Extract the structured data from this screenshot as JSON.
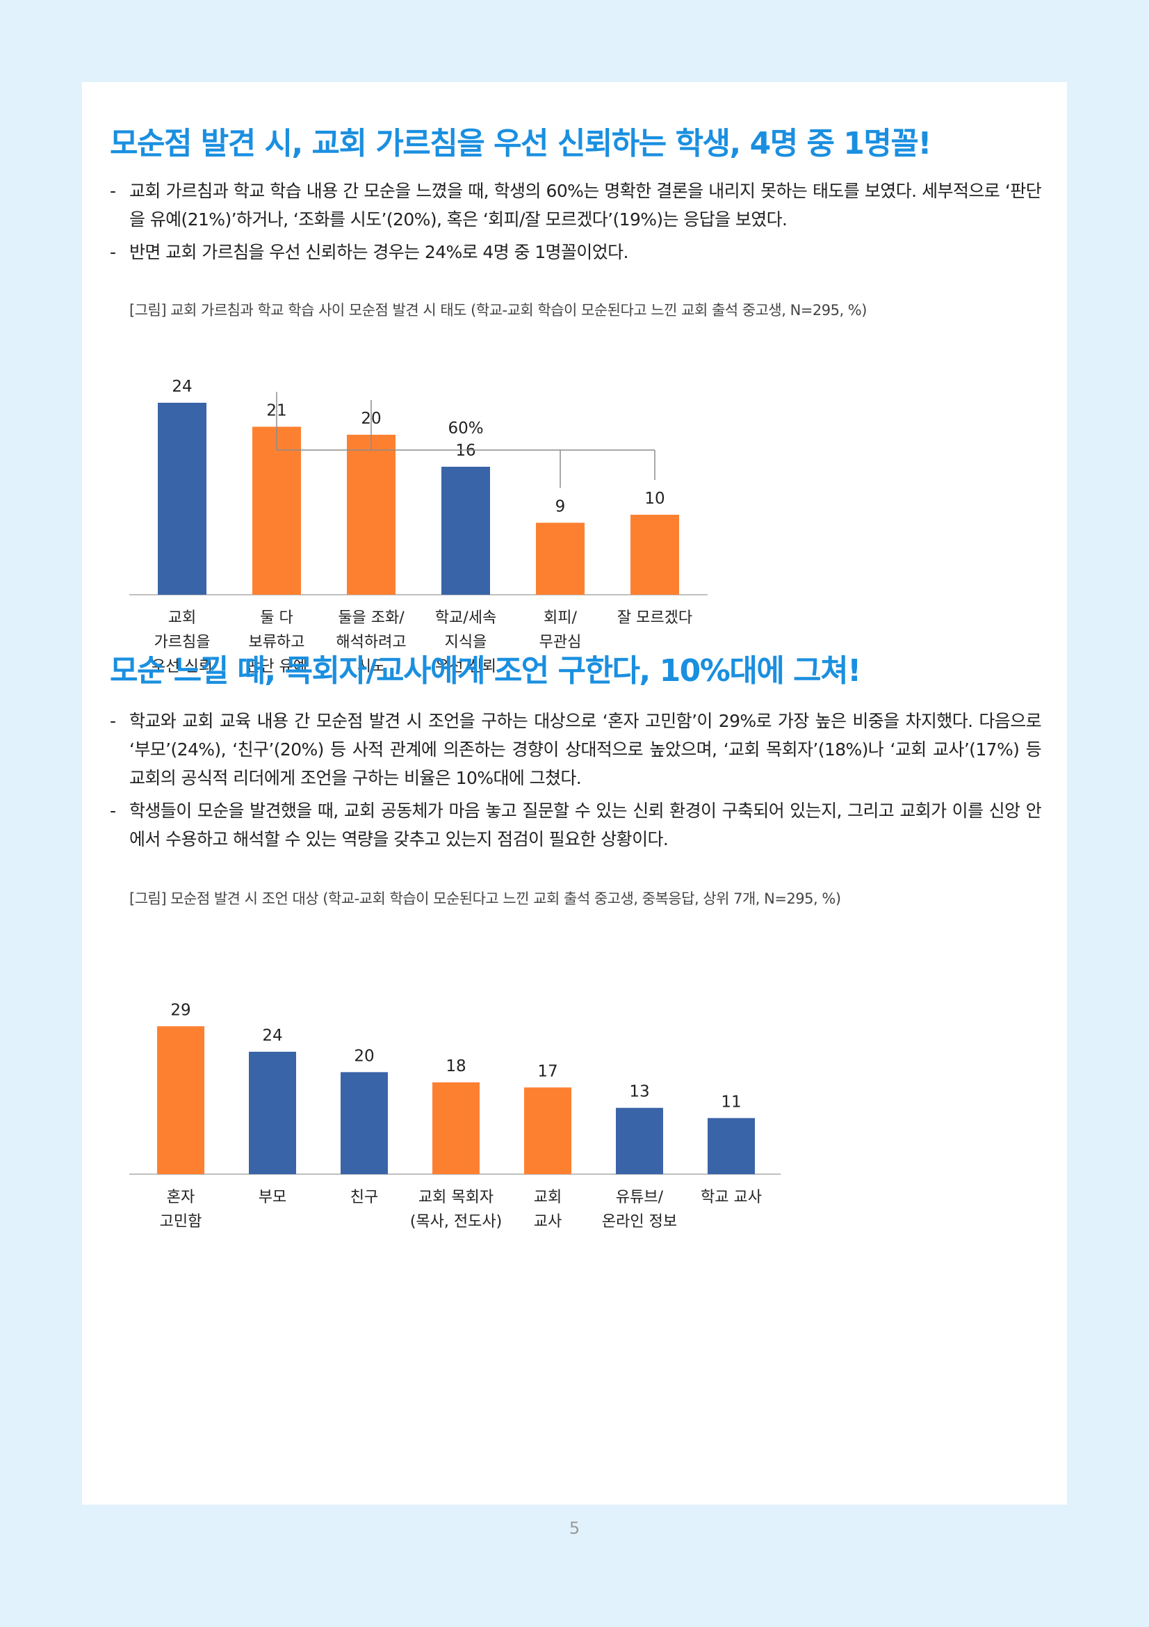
{
  "section1": {
    "heading": "모순점 발견 시, 교회 가르침을 우선 신뢰하는 학생, 4명 중 1명꼴!",
    "bullets": [
      "교회 가르침과 학교 학습 내용 간 모순을 느꼈을 때, 학생의 60%는 명확한 결론을 내리지 못하는 태도를 보였다. 세부적으로 ‘판단을 유예(21%)’하거나, ‘조화를 시도’(20%), 혹은 ‘회피/잘 모르겠다’(19%)는 응답을 보였다.",
      "반면 교회 가르침을 우선 신뢰하는 경우는 24%로 4명 중 1명꼴이었다."
    ],
    "caption": "[그림] 교회 가르침과 학교 학습 사이 모순점 발견 시 태도 (학교-교회 학습이 모순된다고 느낀 교회 출석 중고생, N=295, %)"
  },
  "section2": {
    "heading": "모순 느낄 때, 목회자/교사에게 조언 구한다, 10%대에 그쳐!",
    "bullets": [
      "학교와 교회 교육 내용 간 모순점 발견 시 조언을 구하는 대상으로 ‘혼자 고민함’이 29%로 가장 높은 비중을 차지했다. 다음으로 ‘부모’(24%), ‘친구’(20%) 등 사적 관계에 의존하는 경향이 상대적으로 높았으며, ‘교회 목회자’(18%)나 ‘교회 교사’(17%) 등 교회의 공식적 리더에게 조언을 구하는 비율은 10%대에 그쳤다.",
      "학생들이 모순을 발견했을 때, 교회 공동체가 마음 놓고 질문할 수 있는 신뢰 환경이 구축되어 있는지, 그리고 교회가 이를 신앙 안에서 수용하고 해석할 수 있는 역량을 갖추고 있는지 점검이 필요한 상황이다."
    ],
    "caption": "[그림] 모순점 발견 시 조언 대상 (학교-교회 학습이 모순된다고 느낀 교회 출석 중고생, 중복응답, 상위 7개, N=295, %)"
  },
  "bullet_marker": "-",
  "chart_data": [
    {
      "type": "bar",
      "categories": [
        [
          "교회",
          "가르침을",
          "우선 신뢰"
        ],
        [
          "둘 다",
          "보류하고",
          "판단 유예"
        ],
        [
          "둘을 조화/",
          "해석하려고",
          "시도"
        ],
        [
          "학교/세속",
          "지식을",
          "우선 신뢰"
        ],
        [
          "회피/",
          "무관심"
        ],
        [
          "잘 모르겠다"
        ]
      ],
      "values": [
        24,
        21,
        20,
        16,
        9,
        10
      ],
      "colors": [
        "#3a64a8",
        "#fd8031",
        "#fd8031",
        "#3a64a8",
        "#fd8031",
        "#fd8031"
      ],
      "ylim": [
        0,
        30
      ],
      "annotation": {
        "label": "60%",
        "spans_categories": [
          1,
          2,
          4,
          5
        ]
      },
      "title": "",
      "xlabel": "",
      "ylabel": ""
    },
    {
      "type": "bar",
      "categories": [
        [
          "혼자",
          "고민함"
        ],
        [
          "부모"
        ],
        [
          "친구"
        ],
        [
          "교회 목회자",
          "(목사, 전도사)"
        ],
        [
          "교회",
          "교사"
        ],
        [
          "유튜브/",
          "온라인 정보"
        ],
        [
          "학교 교사"
        ]
      ],
      "values": [
        29,
        24,
        20,
        18,
        17,
        13,
        11
      ],
      "colors": [
        "#fd8031",
        "#3a64a8",
        "#3a64a8",
        "#fd8031",
        "#fd8031",
        "#3a64a8",
        "#3a64a8"
      ],
      "ylim": [
        0,
        30
      ],
      "title": "",
      "xlabel": "",
      "ylabel": ""
    }
  ],
  "footer": {
    "page_number": "5"
  }
}
